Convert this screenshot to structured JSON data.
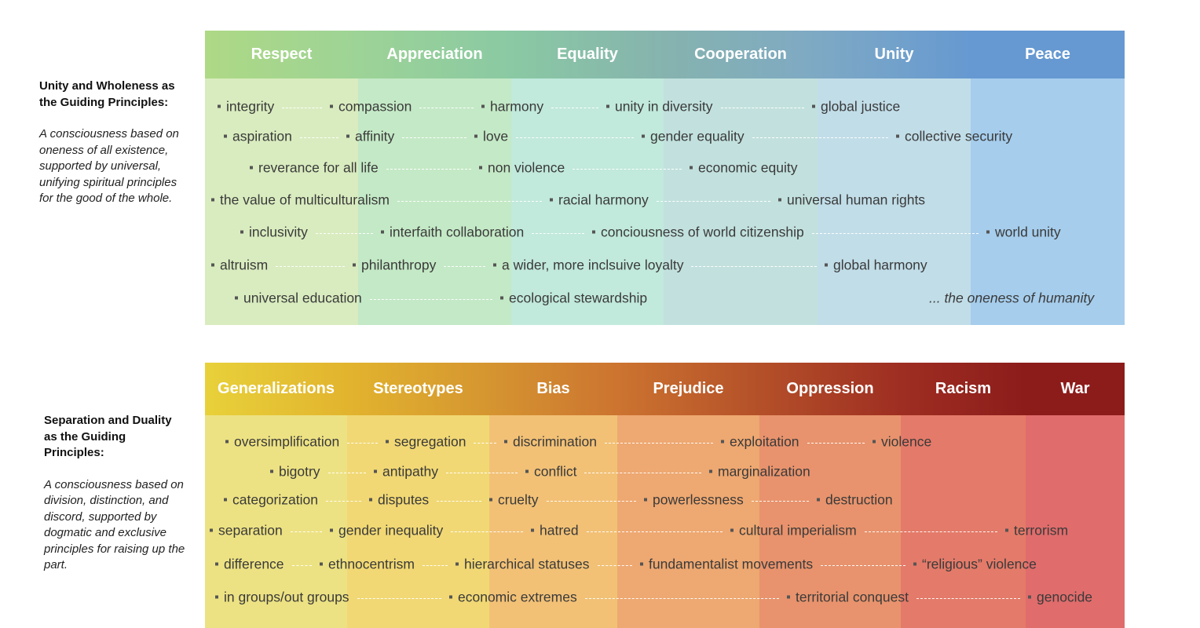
{
  "unity": {
    "title": "Unity and Wholeness as the Guiding Principles:",
    "description": "A consciousness based on oneness of all existence, supported by universal, unifying spiritual principles for the good of the whole.",
    "columns": [
      {
        "label": "Respect",
        "head": "#aed985",
        "body": "#d9ecbf"
      },
      {
        "label": "Appreciation",
        "head": "#9dd396",
        "body": "#c4e9c6"
      },
      {
        "label": "Equality",
        "head": "#8ac9a3",
        "body": "#c1e9dc"
      },
      {
        "label": "Cooperation",
        "head": "#86b3ae",
        "body": "#c2e1de"
      },
      {
        "label": "Unity",
        "head": "#7ea9c4",
        "body": "#c1dde8"
      },
      {
        "label": "Peace",
        "head": "#6699d1",
        "body": "#a6cdec"
      }
    ],
    "items": [
      "integrity",
      "compassion",
      "harmony",
      "unity in diversity",
      "global justice",
      "aspiration",
      "affinity",
      "love",
      "gender equality",
      "collective security",
      "reverance for all life",
      "non violence",
      "economic equity",
      "the value of multiculturalism",
      "racial harmony",
      "universal human rights",
      "inclusivity",
      "interfaith collaboration",
      "conciousness of world citizenship",
      "world unity",
      "altruism",
      "philanthropy",
      "a wider, more inclsuive loyalty",
      "global harmony",
      "universal education",
      "ecological stewardship"
    ],
    "tail": "... the oneness of humanity"
  },
  "separation": {
    "title": "Separation and Duality as the Guiding Principles:",
    "description": "A consciousness based on division, distinction, and discord, supported by dogmatic and exclusive principles for raising up the part.",
    "columns": [
      {
        "label": "Generalizations",
        "head": "#e8d13a",
        "body": "#ede283"
      },
      {
        "label": "Stereotypes",
        "head": "#e2b42e",
        "body": "#f1d874"
      },
      {
        "label": "Bias",
        "head": "#d59530",
        "body": "#f2c176"
      },
      {
        "label": "Prejudice",
        "head": "#cc7430",
        "body": "#eea871"
      },
      {
        "label": "Oppression",
        "head": "#b45029",
        "body": "#e8936d"
      },
      {
        "label": "Racism",
        "head": "#9e2e22",
        "body": "#e47a69"
      },
      {
        "label": "War",
        "head": "#8c1c1a",
        "body": "#e06c6c"
      }
    ],
    "items": [
      "oversimplification",
      "segregation",
      "discrimination",
      "exploitation",
      "violence",
      "bigotry",
      "antipathy",
      "conflict",
      "marginalization",
      "categorization",
      "disputes",
      "cruelty",
      "powerlessness",
      "destruction",
      "separation",
      "gender inequality",
      "hatred",
      "cultural imperialism",
      "terrorism",
      "difference",
      "ethnocentrism",
      "hierarchical statuses",
      "fundamentalist movements",
      "“religious” violence",
      "in groups/out groups",
      "economic extremes",
      "territorial conquest",
      "genocide"
    ]
  }
}
